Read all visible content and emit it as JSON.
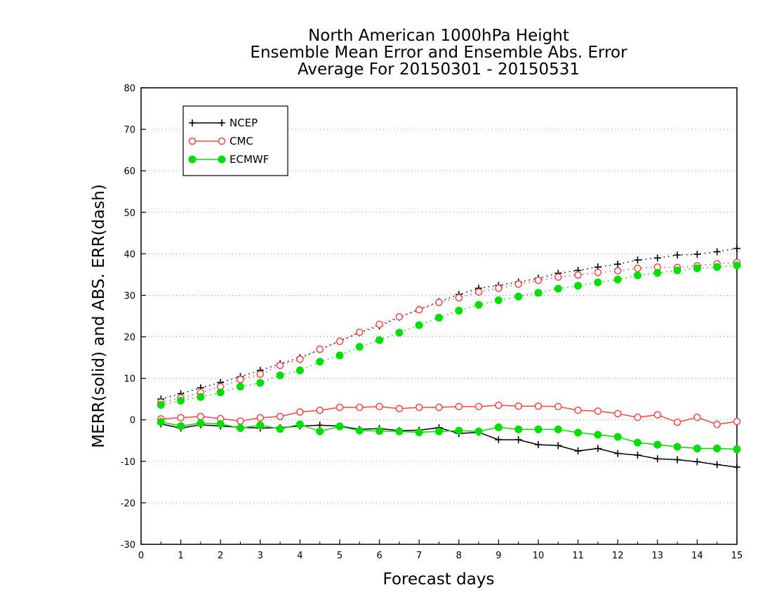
{
  "chart_data": {
    "type": "line",
    "title": [
      "North American 1000hPa Height",
      "Ensemble Mean Error and Ensemble Abs. Error",
      "Average For 20150301 - 20150531"
    ],
    "xlabel": "Forecast days",
    "ylabel": "MERR(solid) and ABS. ERR(dash)",
    "xlim": [
      0,
      15
    ],
    "ylim": [
      -30,
      80
    ],
    "xticks": [
      0,
      1,
      2,
      3,
      4,
      5,
      6,
      7,
      8,
      9,
      10,
      11,
      12,
      13,
      14,
      15
    ],
    "yticks": [
      -30,
      -20,
      -10,
      0,
      10,
      20,
      30,
      40,
      50,
      60,
      70,
      80
    ],
    "grid": "horizontal dotted",
    "legend_position": "top-left",
    "x": [
      0.5,
      1,
      1.5,
      2,
      2.5,
      3,
      3.5,
      4,
      4.5,
      5,
      5.5,
      6,
      6.5,
      7,
      7.5,
      8,
      8.5,
      9,
      9.5,
      10,
      10.5,
      11,
      11.5,
      12,
      12.5,
      13,
      13.5,
      14,
      14.5,
      15
    ],
    "series": [
      {
        "name": "NCEP",
        "color": "#000000",
        "marker": "plus",
        "merr": [
          -1,
          -2,
          -1.2,
          -1.5,
          -1.8,
          -2,
          -1.9,
          -1.5,
          -1.3,
          -1.5,
          -2.3,
          -2.1,
          -2.6,
          -2.5,
          -1.9,
          -3.3,
          -3,
          -4.8,
          -4.8,
          -6,
          -6.2,
          -7.5,
          -6.9,
          -8.1,
          -8.5,
          -9.4,
          -9.6,
          -10.1,
          -10.8,
          -11.4
        ],
        "abs_err": [
          5,
          6.3,
          7.7,
          9,
          10.4,
          11.9,
          13.5,
          15,
          16.9,
          19,
          21,
          22.6,
          24.7,
          26.6,
          28.5,
          30.2,
          31.7,
          32.4,
          33.2,
          34.1,
          35.3,
          36,
          36.8,
          37.5,
          38.5,
          39,
          39.7,
          39.9,
          40.5,
          41.3
        ]
      },
      {
        "name": "CMC",
        "color": "#ff4444",
        "marker": "open-circle",
        "merr": [
          0.2,
          0.5,
          0.8,
          0.3,
          -0.3,
          0.5,
          0.8,
          1.9,
          2.3,
          3,
          3,
          3.2,
          2.7,
          3,
          3,
          3.2,
          3.2,
          3.5,
          3.3,
          3.3,
          3.2,
          2.3,
          2.1,
          1.5,
          0.6,
          1.2,
          -0.6,
          0.6,
          -1.1,
          -0.4
        ],
        "abs_err": [
          4.2,
          5.3,
          6.6,
          8,
          9.7,
          11,
          13.1,
          14.6,
          17,
          18.9,
          21.1,
          23,
          24.8,
          26.5,
          28.3,
          29.4,
          30.8,
          31.7,
          32.7,
          33.6,
          34.4,
          34.9,
          35.5,
          35.9,
          36.5,
          36.8,
          36.7,
          37.1,
          37.6,
          37.9
        ]
      },
      {
        "name": "ECMWF",
        "color": "#00dd00",
        "marker": "filled-circle",
        "merr": [
          -0.5,
          -1.5,
          -0.8,
          -1,
          -2,
          -1.3,
          -2.2,
          -1.1,
          -2.8,
          -1.6,
          -2.6,
          -2.7,
          -2.8,
          -3,
          -2.8,
          -2.6,
          -2.8,
          -1.8,
          -2.3,
          -2.3,
          -2.3,
          -3.1,
          -3.6,
          -4.1,
          -5.5,
          -6,
          -6.5,
          -6.9,
          -6.9,
          -7.1
        ],
        "abs_err": [
          3.6,
          4.6,
          5.5,
          6.6,
          8,
          8.9,
          10.7,
          11.9,
          14,
          15.5,
          17.6,
          19.2,
          21,
          22.8,
          24.6,
          26.3,
          27.7,
          28.8,
          29.7,
          30.6,
          31.6,
          32.3,
          33.1,
          33.8,
          34.8,
          35.4,
          36,
          36.5,
          36.8,
          37.2
        ]
      }
    ]
  }
}
